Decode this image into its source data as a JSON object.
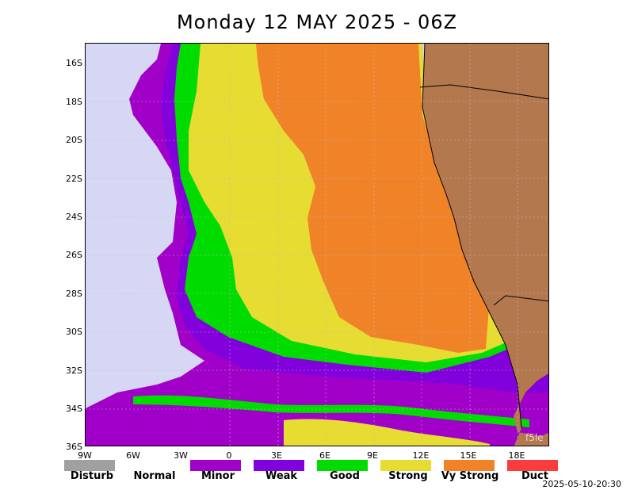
{
  "title": "Monday 12 MAY 2025 - 06Z",
  "timestamp": "2025-05-10-20:30",
  "watermark": "f5le",
  "y_ticks": [
    "16S",
    "18S",
    "20S",
    "22S",
    "24S",
    "26S",
    "28S",
    "30S",
    "32S",
    "34S",
    "36S"
  ],
  "x_ticks": [
    "9W",
    "6W",
    "3W",
    "0",
    "3E",
    "6E",
    "9E",
    "12E",
    "15E",
    "18E"
  ],
  "legend": [
    {
      "label": "Disturb",
      "color": "#a0a0a0"
    },
    {
      "label": "Normal",
      "color": "#ffffff"
    },
    {
      "label": "Minor",
      "color": "#a000c8"
    },
    {
      "label": "Weak",
      "color": "#8200dc"
    },
    {
      "label": "Good",
      "color": "#00dc00"
    },
    {
      "label": "Strong",
      "color": "#e6dc32"
    },
    {
      "label": "Vy Strong",
      "color": "#f08228"
    },
    {
      "label": "Duct",
      "color": "#fa3c3c"
    }
  ],
  "colors": {
    "ocean": "#d6d6f5",
    "land": "#b4784e",
    "minor": "#a000c8",
    "weak": "#8200dc",
    "good": "#00dc00",
    "strong": "#e6dc32",
    "vystrong": "#f08228"
  }
}
